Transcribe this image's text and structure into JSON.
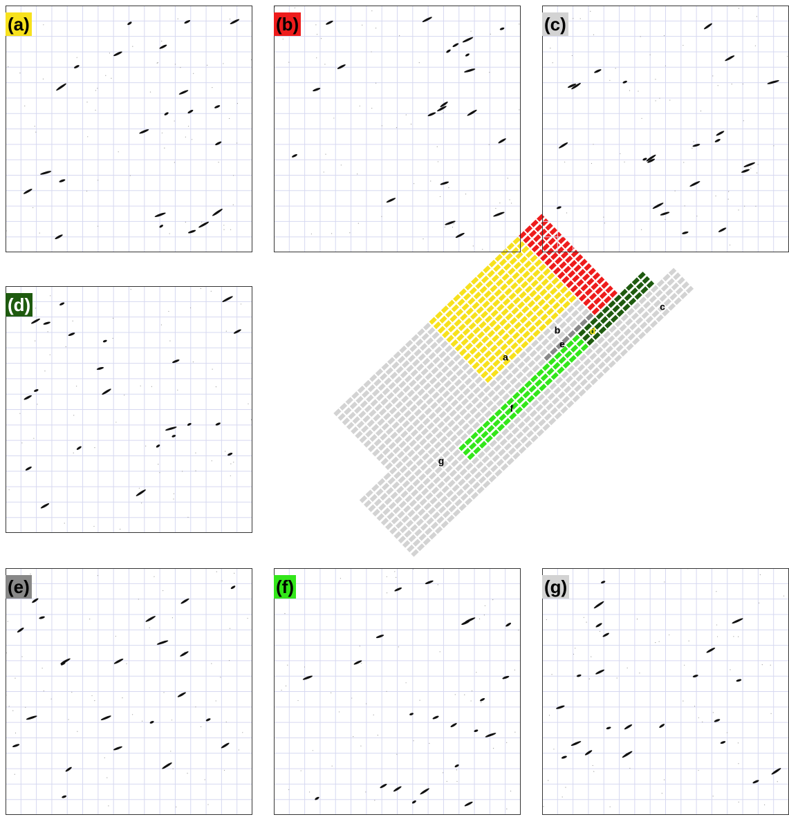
{
  "panels": [
    {
      "label": "(a)"
    },
    {
      "label": "(b)"
    },
    {
      "label": "(c)"
    },
    {
      "label": "(d)"
    },
    {
      "label": "(e)"
    },
    {
      "label": "(f)"
    },
    {
      "label": "(g)"
    }
  ],
  "map": {
    "labels": [
      "a",
      "b",
      "c",
      "d",
      "e",
      "f",
      "g"
    ]
  }
}
